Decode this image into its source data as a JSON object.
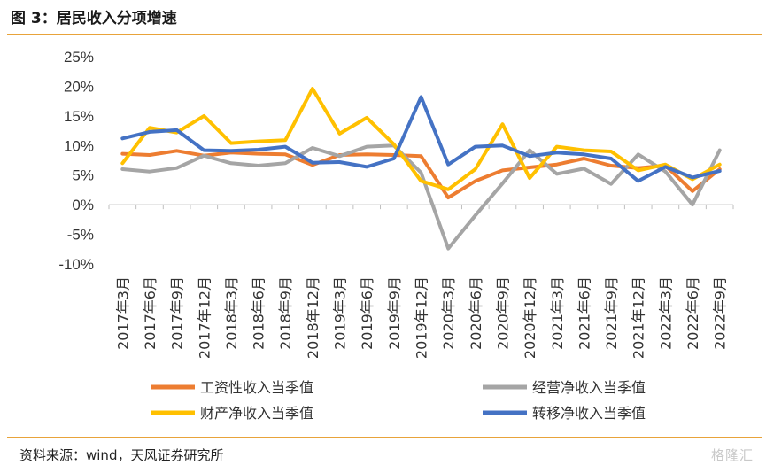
{
  "header": {
    "title": "图 3：居民收入分项增速"
  },
  "footer": {
    "source": "资料来源：wind，天风证券研究所",
    "watermark": "格隆汇"
  },
  "colors": {
    "accent_rule": "#e8a33a"
  },
  "chart_data": {
    "type": "line",
    "categories": [
      "2017年3月",
      "2017年6月",
      "2017年9月",
      "2017年12月",
      "2018年3月",
      "2018年6月",
      "2018年9月",
      "2018年12月",
      "2019年3月",
      "2019年6月",
      "2019年9月",
      "2019年12月",
      "2020年3月",
      "2020年6月",
      "2020年9月",
      "2020年12月",
      "2021年3月",
      "2021年6月",
      "2021年9月",
      "2021年12月",
      "2022年3月",
      "2022年6月",
      "2022年9月"
    ],
    "ylim": [
      -10,
      25
    ],
    "yticks": [
      -10,
      -5,
      0,
      5,
      10,
      15,
      20,
      25
    ],
    "ytick_labels": [
      "-10%",
      "-5%",
      "0%",
      "5%",
      "10%",
      "15%",
      "20%",
      "25%"
    ],
    "legend_position": "bottom",
    "grid": false,
    "series": [
      {
        "name": "工资性收入当季值",
        "color": "#ed7d31",
        "values": [
          8.6,
          8.4,
          9.1,
          8.3,
          8.8,
          8.6,
          8.5,
          6.7,
          8.4,
          8.5,
          8.4,
          8.2,
          1.2,
          4.0,
          5.8,
          6.3,
          6.8,
          7.8,
          6.6,
          6.2,
          6.6,
          2.3,
          6.0
        ]
      },
      {
        "name": "经营净收入当季值",
        "color": "#a5a5a5",
        "values": [
          6.0,
          5.6,
          6.2,
          8.3,
          7.0,
          6.6,
          7.0,
          9.6,
          8.2,
          9.8,
          10.0,
          5.4,
          -7.4,
          -1.8,
          3.6,
          9.2,
          5.2,
          6.1,
          3.5,
          8.5,
          5.6,
          0.0,
          9.2
        ]
      },
      {
        "name": "财产净收入当季值",
        "color": "#ffc000",
        "values": [
          7.0,
          13.0,
          12.2,
          15.0,
          10.4,
          10.7,
          10.9,
          19.6,
          12.0,
          14.7,
          10.2,
          4.0,
          2.6,
          6.0,
          13.6,
          4.5,
          9.8,
          9.2,
          9.0,
          5.8,
          6.8,
          4.3,
          6.8
        ]
      },
      {
        "name": "转移净收入当季值",
        "color": "#4472c4",
        "values": [
          11.2,
          12.3,
          12.6,
          9.2,
          9.1,
          9.3,
          9.8,
          7.1,
          7.2,
          6.4,
          7.8,
          18.2,
          6.8,
          9.8,
          10.0,
          8.2,
          8.8,
          8.5,
          7.8,
          4.0,
          6.4,
          4.6,
          5.7
        ]
      }
    ]
  }
}
